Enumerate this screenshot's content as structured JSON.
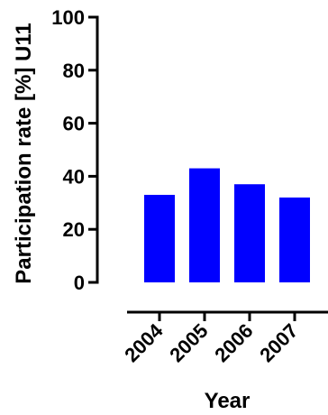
{
  "chart_data": {
    "type": "bar",
    "categories": [
      "2004",
      "2005",
      "2006",
      "2007"
    ],
    "values": [
      33,
      43,
      37,
      32
    ],
    "xlabel": "Year",
    "ylabel": "Participation rate [%] U11",
    "ylim": [
      0,
      100
    ],
    "yticks": [
      0,
      20,
      40,
      60,
      80,
      100
    ],
    "grid": false,
    "legend": "none",
    "bar_color": "#0000ff",
    "axis_color": "#000000"
  }
}
